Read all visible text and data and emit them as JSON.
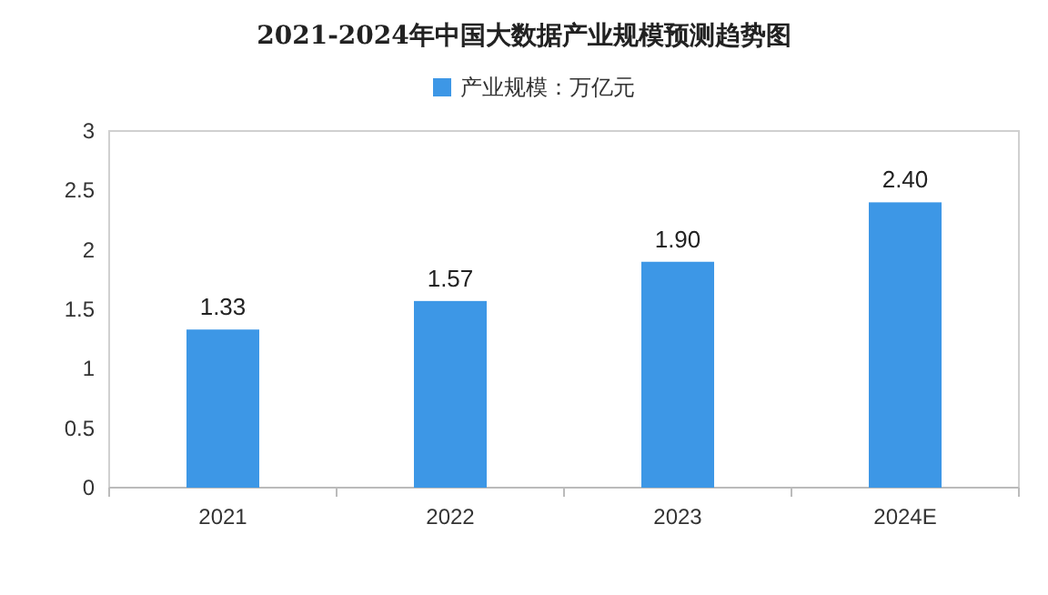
{
  "chart_data": {
    "type": "bar",
    "title": "2021-2024年中国大数据产业规模预测趋势图",
    "categories": [
      "2021",
      "2022",
      "2023",
      "2024E"
    ],
    "series": [
      {
        "name": "产业规模：万亿元",
        "color": "#3d97e6",
        "values": [
          1.33,
          1.57,
          1.9,
          2.4
        ]
      }
    ],
    "value_labels": [
      "1.33",
      "1.57",
      "1.90",
      "2.40"
    ],
    "ylim": [
      0,
      3
    ],
    "yticks": [
      0,
      0.5,
      1,
      1.5,
      2,
      2.5,
      3
    ],
    "grid": false,
    "legend": "top"
  }
}
